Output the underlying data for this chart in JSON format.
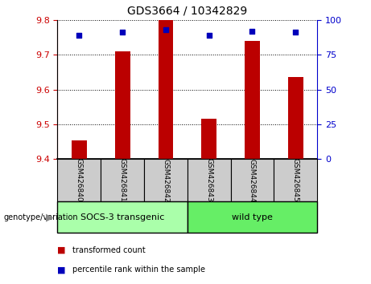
{
  "title": "GDS3664 / 10342829",
  "samples": [
    "GSM426840",
    "GSM426841",
    "GSM426842",
    "GSM426843",
    "GSM426844",
    "GSM426845"
  ],
  "transformed_counts": [
    9.453,
    9.71,
    9.8,
    9.515,
    9.74,
    9.635
  ],
  "percentile_ranks": [
    89,
    91,
    93,
    89,
    92,
    91
  ],
  "ylim_left": [
    9.4,
    9.8
  ],
  "ylim_right": [
    0,
    100
  ],
  "yticks_left": [
    9.4,
    9.5,
    9.6,
    9.7,
    9.8
  ],
  "yticks_right": [
    0,
    25,
    50,
    75,
    100
  ],
  "bar_color": "#bb0000",
  "dot_color": "#0000bb",
  "groups": [
    {
      "label": "SOCS-3 transgenic",
      "indices": [
        0,
        1,
        2
      ],
      "color": "#aaffaa"
    },
    {
      "label": "wild type",
      "indices": [
        3,
        4,
        5
      ],
      "color": "#66ee66"
    }
  ],
  "group_label": "genotype/variation",
  "legend_items": [
    {
      "color": "#bb0000",
      "label": "transformed count"
    },
    {
      "color": "#0000bb",
      "label": "percentile rank within the sample"
    }
  ],
  "tick_color_left": "#cc0000",
  "tick_color_right": "#0000cc",
  "xticklabel_bg": "#cccccc",
  "bar_width": 0.35
}
